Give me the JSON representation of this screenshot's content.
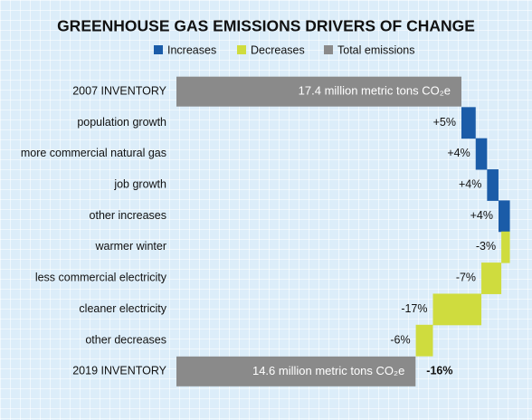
{
  "chart_data": {
    "type": "waterfall",
    "title": "GREENHOUSE GAS EMISSIONS DRIVERS OF CHANGE",
    "legend": [
      {
        "name": "Increases",
        "color": "#1b5ca8"
      },
      {
        "name": "Decreases",
        "color": "#cfdc3e"
      },
      {
        "name": "Total emissions",
        "color": "#8a8a8a"
      }
    ],
    "categories": [
      "2007 INVENTORY",
      "population growth",
      "more commercial natural gas",
      "job growth",
      "other increases",
      "warmer winter",
      "less commercial electricity",
      "cleaner electricity",
      "other decreases",
      "2019 INVENTORY"
    ],
    "values": [
      17.4,
      5,
      4,
      4,
      4,
      -3,
      -7,
      -17,
      -6,
      14.6
    ],
    "value_labels": [
      "17.4 million metric tons CO₂e",
      "+5%",
      "+4%",
      "+4%",
      "+4%",
      "-3%",
      "-7%",
      "-17%",
      "-6%",
      "14.6 million metric tons CO₂e"
    ],
    "kinds": [
      "total",
      "step",
      "step",
      "step",
      "step",
      "step",
      "step",
      "step",
      "step",
      "total"
    ],
    "total_change": {
      "value": -16,
      "label": "-16%"
    }
  }
}
